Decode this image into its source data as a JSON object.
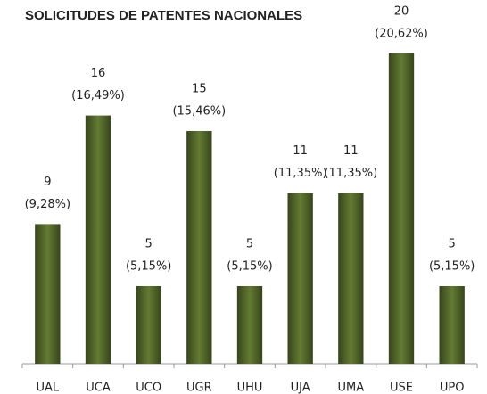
{
  "chart_data": {
    "type": "bar",
    "title": "SOLICITUDES DE PATENTES NACIONALES",
    "categories": [
      "UAL",
      "UCA",
      "UCO",
      "UGR",
      "UHU",
      "UJA",
      "UMA",
      "USE",
      "UPO"
    ],
    "values": [
      9,
      16,
      5,
      15,
      5,
      11,
      11,
      20,
      5
    ],
    "percent_labels": [
      "(9,28%)",
      "(16,49%)",
      "(5,15%)",
      "(15,46%)",
      "(5,15%)",
      "(11,35%)",
      "(11,35%)",
      "(20,62%)",
      "(5,15%)"
    ],
    "color": "#4f6228",
    "ylim": [
      0,
      22
    ]
  }
}
